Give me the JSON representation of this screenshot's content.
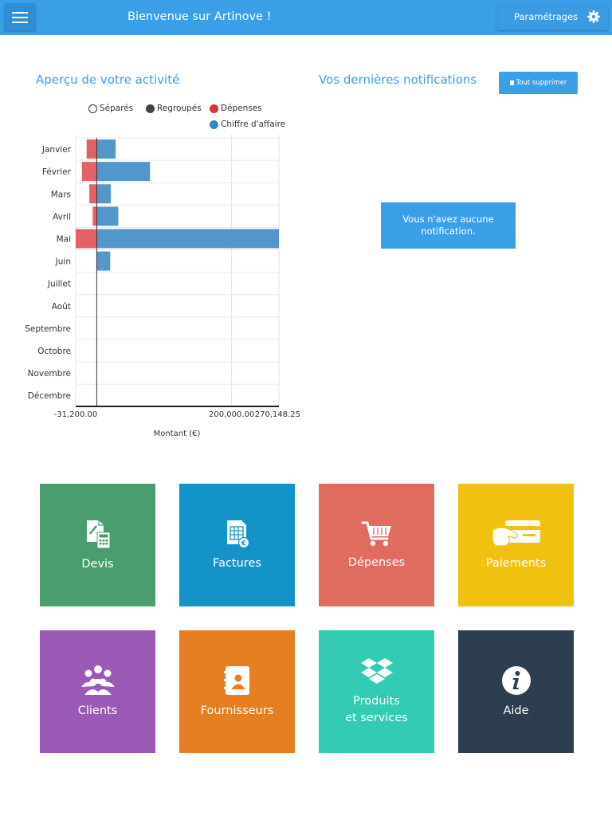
{
  "header": {
    "title": "Bienvenue sur Artinove !",
    "settings_label": "Paramétrages"
  },
  "activity": {
    "title": "Aperçu de votre activité",
    "legend": {
      "separated": "Séparés",
      "grouped": "Regroupés",
      "expenses": "Dépenses",
      "revenue": "Chiffre d'affaire"
    }
  },
  "notifications": {
    "title": "Vos dernières notifications",
    "clear_all": "Tout supprimer",
    "empty_line1": "Vous n'avez aucune",
    "empty_line2": "notification."
  },
  "chart_data": {
    "type": "bar",
    "orientation": "horizontal",
    "categories": [
      "Janvier",
      "Février",
      "Mars",
      "Avril",
      "Mai",
      "Juin",
      "Juillet",
      "Août",
      "Septembre",
      "Octobre",
      "Novembre",
      "Décembre"
    ],
    "series": [
      {
        "name": "Dépenses",
        "color": "#e05a5f",
        "values": [
          -15000,
          -22000,
          -11000,
          -6000,
          -31200,
          0,
          0,
          0,
          0,
          0,
          0,
          0
        ]
      },
      {
        "name": "Chiffre d'affaire",
        "color": "#4a90c8",
        "values": [
          28000,
          79000,
          21000,
          32000,
          270148.25,
          20000,
          0,
          0,
          0,
          0,
          0,
          0
        ]
      }
    ],
    "xlabel": "Montant (€)",
    "ylabel": "",
    "xlim": [
      -31200,
      270148.25
    ],
    "tick_labels": [
      "-31,200.00",
      "200,000.00",
      "270,148.25"
    ],
    "tick_values": [
      -31200,
      200000,
      270148.25
    ],
    "stacked": true,
    "grid": true,
    "legend_position": "top"
  },
  "tiles": [
    {
      "label": "Devis",
      "icon": "quote-calculator-icon",
      "color": "#4a9e6e"
    },
    {
      "label": "Factures",
      "icon": "invoice-icon",
      "color": "#1493c8"
    },
    {
      "label": "Dépenses",
      "icon": "shopping-cart-icon",
      "color": "#e06b5f"
    },
    {
      "label": "Paiements",
      "icon": "credit-card-payment-icon",
      "color": "#f0c20f"
    },
    {
      "label": "Clients",
      "icon": "clients-group-icon",
      "color": "#9b59b6"
    },
    {
      "label": "Fournisseurs",
      "icon": "contact-book-icon",
      "color": "#e67e22"
    },
    {
      "label": "Produits",
      "label2": "et services",
      "icon": "dropbox-boxes-icon",
      "color": "#34cbb5"
    },
    {
      "label": "Aide",
      "icon": "info-icon",
      "color": "#2c3e50"
    }
  ]
}
